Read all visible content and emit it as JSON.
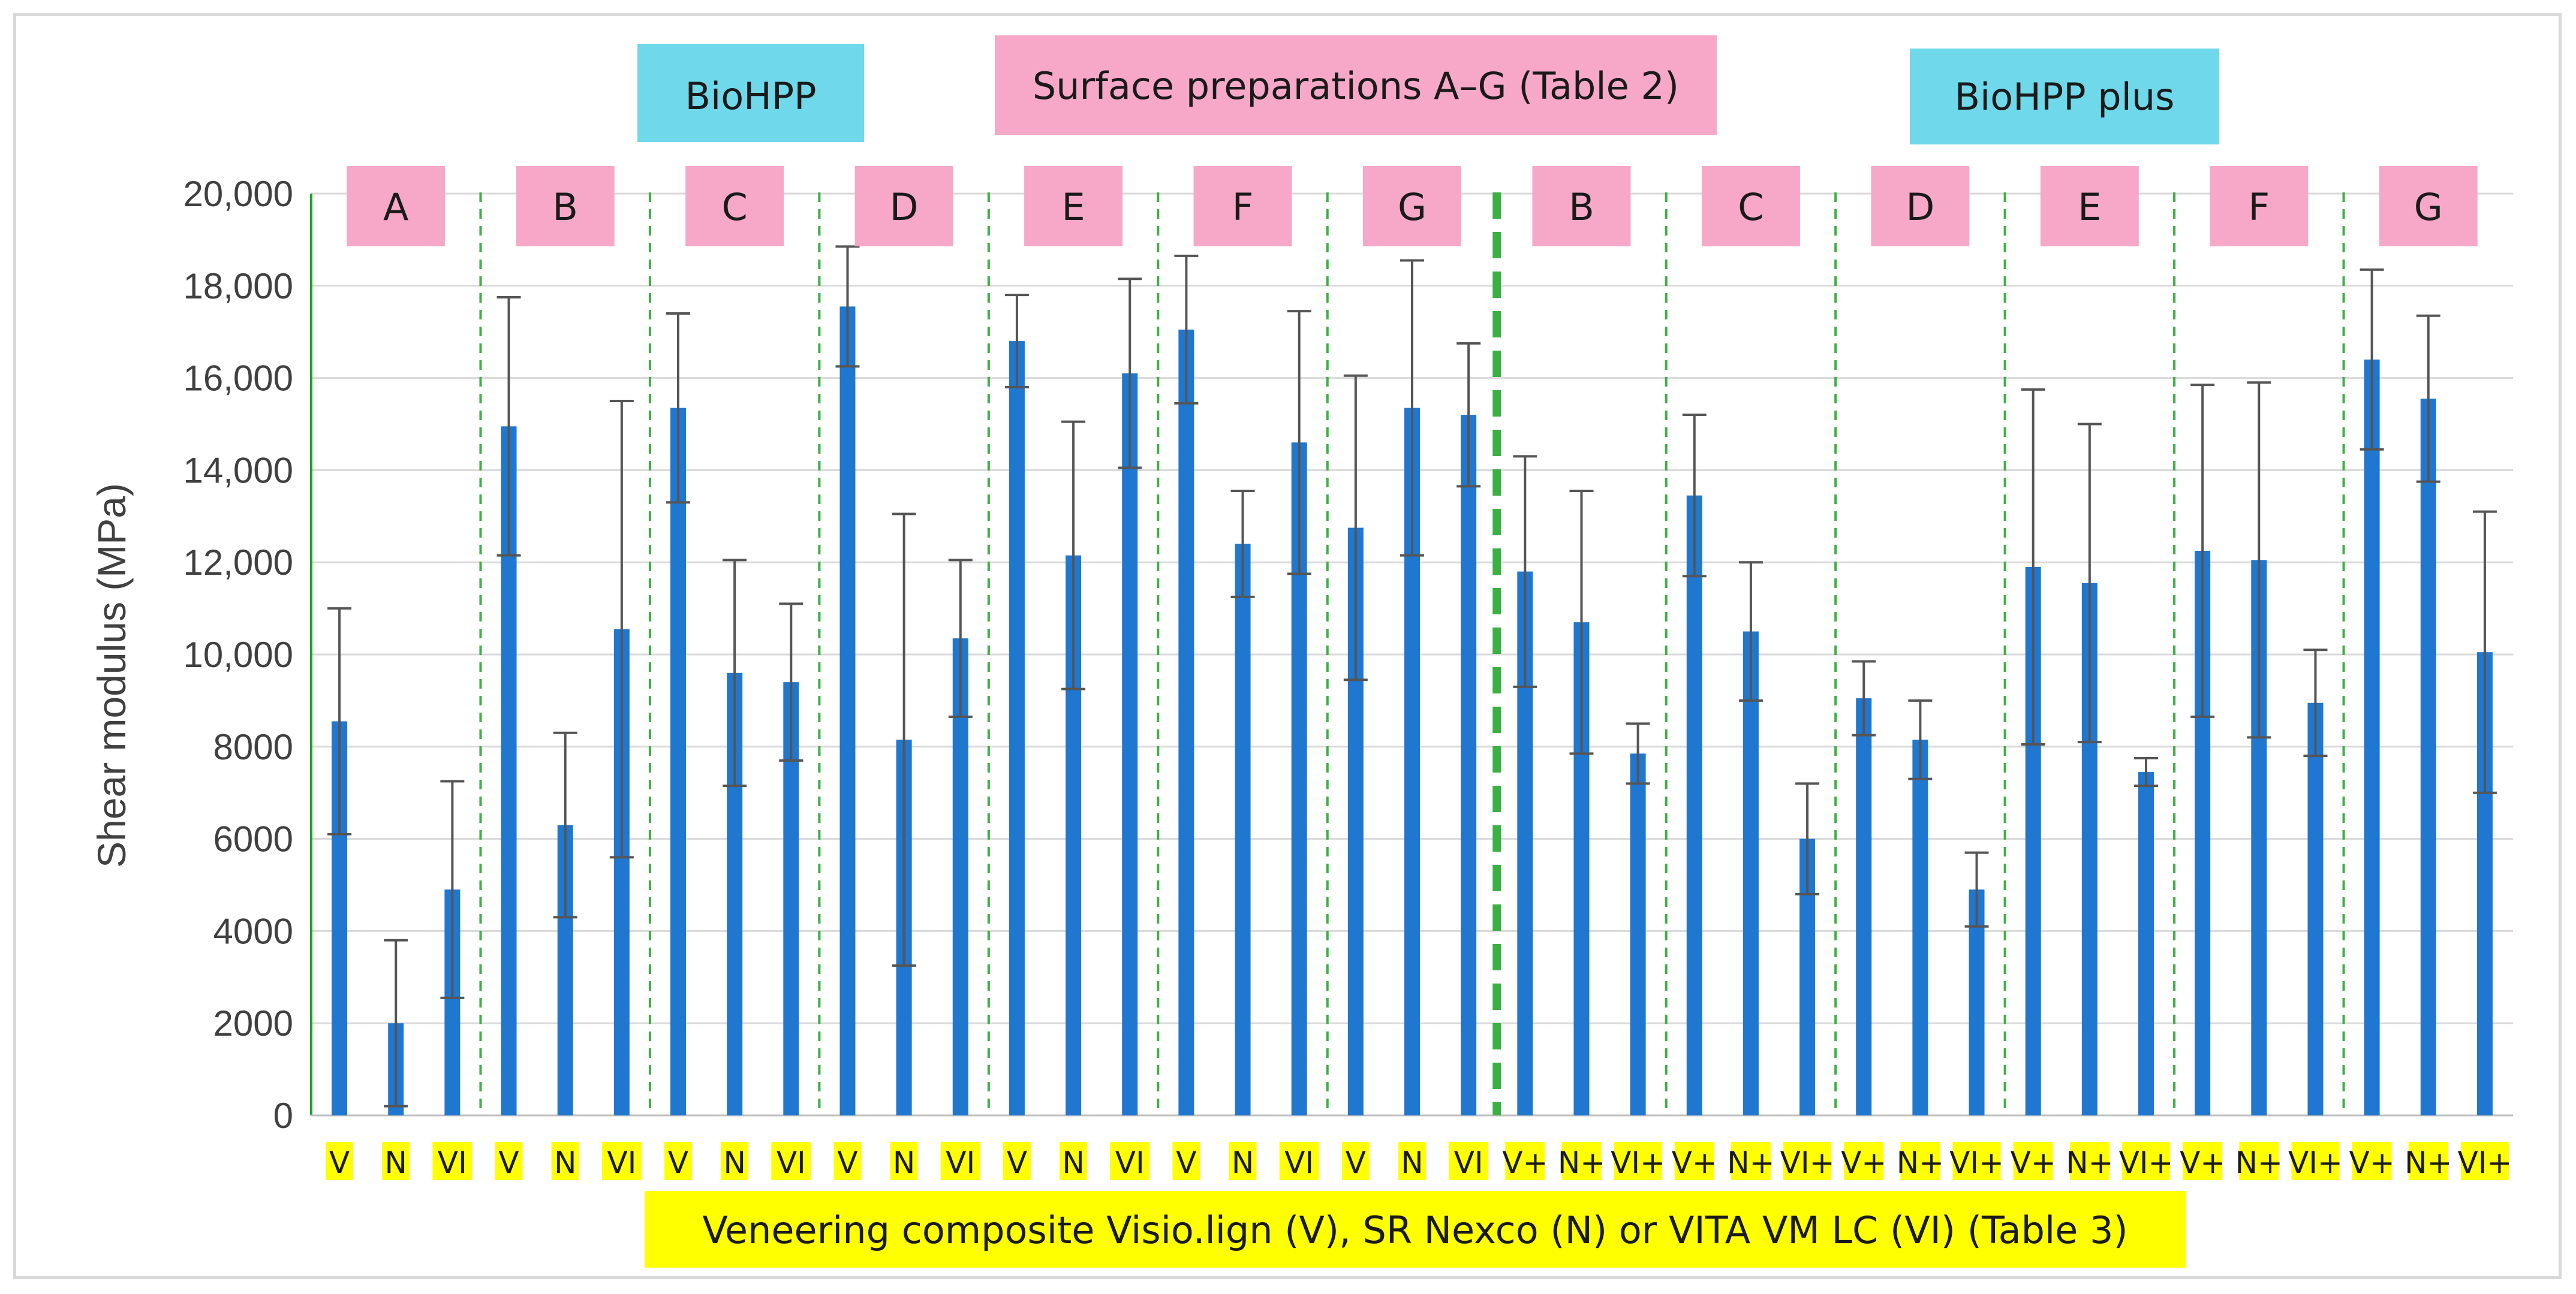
{
  "chart_data": {
    "type": "bar",
    "ylabel": "Shear modulus (MPa)",
    "xlabel": "Veneering composite Visio.lign (V), SR Nexco (N) or VITA VM LC (VI) (Table 3)",
    "ylim": [
      0,
      20000
    ],
    "yticks": [
      "0",
      "2000",
      "4000",
      "6000",
      "8000",
      "10,000",
      "12,000",
      "14,000",
      "16,000",
      "18,000",
      "20,000"
    ],
    "grid": true,
    "header_labels": {
      "biohpp": "BioHPP",
      "surface": "Surface preparations A–G (Table 2)",
      "biohpp_plus": "BioHPP plus"
    },
    "groups": [
      {
        "label": "A",
        "material": "BioHPP"
      },
      {
        "label": "B",
        "material": "BioHPP"
      },
      {
        "label": "C",
        "material": "BioHPP"
      },
      {
        "label": "D",
        "material": "BioHPP"
      },
      {
        "label": "E",
        "material": "BioHPP"
      },
      {
        "label": "F",
        "material": "BioHPP"
      },
      {
        "label": "G",
        "material": "BioHPP"
      },
      {
        "label": "B",
        "material": "BioHPP plus"
      },
      {
        "label": "C",
        "material": "BioHPP plus"
      },
      {
        "label": "D",
        "material": "BioHPP plus"
      },
      {
        "label": "E",
        "material": "BioHPP plus"
      },
      {
        "label": "F",
        "material": "BioHPP plus"
      },
      {
        "label": "G",
        "material": "BioHPP plus"
      }
    ],
    "categories": [
      "V",
      "N",
      "VI",
      "V",
      "N",
      "VI",
      "V",
      "N",
      "VI",
      "V",
      "N",
      "VI",
      "V",
      "N",
      "VI",
      "V",
      "N",
      "VI",
      "V",
      "N",
      "VI",
      "V+",
      "N+",
      "VI+",
      "V+",
      "N+",
      "VI+",
      "V+",
      "N+",
      "VI+",
      "V+",
      "N+",
      "VI+",
      "V+",
      "N+",
      "VI+",
      "V+",
      "N+",
      "VI+"
    ],
    "values": [
      8550,
      2000,
      4900,
      14950,
      6300,
      10550,
      15350,
      9600,
      9400,
      17550,
      8150,
      10350,
      16800,
      12150,
      16100,
      17050,
      12400,
      14600,
      12750,
      15350,
      15200,
      11800,
      10700,
      7850,
      13450,
      10500,
      6000,
      9050,
      8150,
      4900,
      11900,
      11550,
      7450,
      12250,
      12050,
      8950,
      16400,
      15550,
      10050
    ],
    "errors": [
      2450,
      1800,
      2350,
      2800,
      2000,
      4950,
      2050,
      2450,
      1700,
      1300,
      4900,
      1700,
      1000,
      2900,
      2050,
      1600,
      1150,
      2850,
      3300,
      3200,
      1550,
      2500,
      2850,
      650,
      1750,
      1500,
      1200,
      800,
      850,
      800,
      3850,
      3450,
      300,
      3600,
      3850,
      1150,
      1950,
      1800,
      3050
    ]
  }
}
